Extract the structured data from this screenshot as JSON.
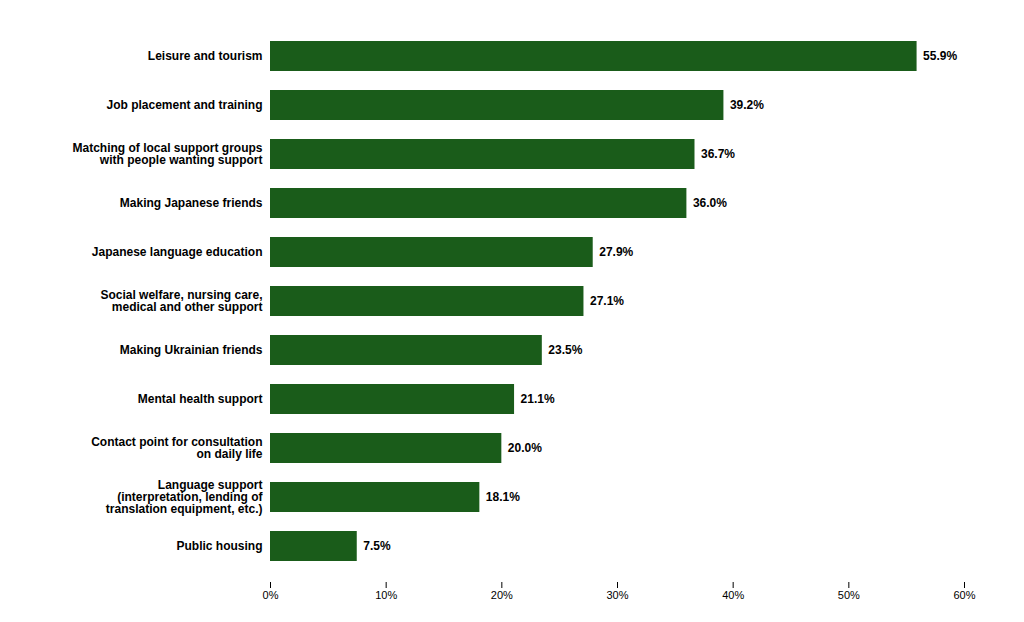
{
  "chart_data": {
    "type": "bar",
    "orientation": "horizontal",
    "categories": [
      "Public housing",
      "Language support\n(interpretation, lending of\ntranslation equipment, etc.)",
      "Contact point for consultation\non daily life",
      "Mental health support",
      "Making Ukrainian friends",
      "Social welfare, nursing care,\nmedical and other support",
      "Japanese language education",
      "Making Japanese friends",
      "Matching of local support groups\nwith people wanting support",
      "Job placement and training",
      "Leisure and tourism"
    ],
    "values": [
      7.5,
      18.1,
      20.0,
      21.1,
      23.5,
      27.1,
      27.9,
      36.0,
      36.7,
      39.2,
      55.9
    ],
    "value_labels": [
      "7.5%",
      "18.1%",
      "20.0%",
      "21.1%",
      "23.5%",
      "27.1%",
      "27.9%",
      "36.0%",
      "36.7%",
      "39.2%",
      "55.9%"
    ],
    "data_labels": true,
    "color": "#1a5c1a",
    "xlim": [
      0,
      60
    ],
    "xticks": [
      {
        "value": 0,
        "label": "0%"
      },
      {
        "value": 10,
        "label": "10%"
      },
      {
        "value": 20,
        "label": "20%"
      },
      {
        "value": 30,
        "label": "30%"
      },
      {
        "value": 40,
        "label": "40%"
      },
      {
        "value": 50,
        "label": "50%"
      },
      {
        "value": 60,
        "label": "60%"
      }
    ],
    "grid": false
  }
}
